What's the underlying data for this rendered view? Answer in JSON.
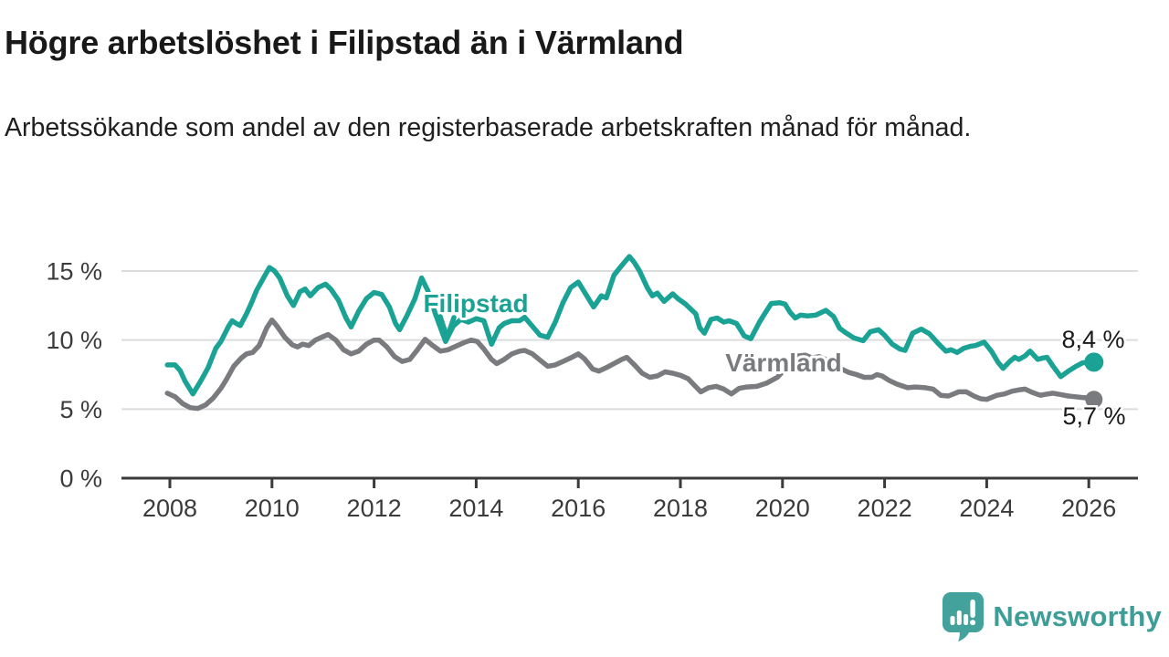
{
  "header": {
    "title": "Högre arbetslöshet i Filipstad än i Värmland",
    "subtitle": "Arbetssökande som andel av den registerbaserade arbetskraften månad för månad."
  },
  "footer": {
    "brand": "Newsworthy"
  },
  "colors": {
    "filipstad": "#1aa294",
    "varmland": "#7a7b7f",
    "grid": "#dcdcdc",
    "axis": "#3a3a3a",
    "value_label": "#1a1a1a",
    "tick_label": "#3b3b3b",
    "logo_teal": "#43a29b",
    "brand_text_teal": "#3d9d97"
  },
  "chart_data": {
    "type": "line",
    "unit": "percent",
    "grid": "horizontal",
    "legend_position": "inline-labels",
    "y_axis": {
      "tick_values": [
        0,
        5,
        10,
        15
      ],
      "tick_labels": [
        "0 %",
        "5 %",
        "10 %",
        "15 %"
      ],
      "range": [
        0,
        17
      ]
    },
    "x_axis": {
      "tick_values": [
        2008,
        2010,
        2012,
        2014,
        2016,
        2018,
        2020,
        2022,
        2024,
        2026
      ],
      "tick_labels": [
        "2008",
        "2010",
        "2012",
        "2014",
        "2016",
        "2018",
        "2020",
        "2022",
        "2024",
        "2026"
      ],
      "range": [
        2007.9,
        2027.0
      ]
    },
    "series": [
      {
        "name": "Filipstad",
        "color": "#1aa294",
        "end_value": 8.4,
        "end_value_label": "8,4 %",
        "points": [
          [
            2007.95,
            8.2
          ],
          [
            2008.1,
            8.2
          ],
          [
            2008.2,
            7.8
          ],
          [
            2008.3,
            7.0
          ],
          [
            2008.45,
            6.1
          ],
          [
            2008.6,
            7.0
          ],
          [
            2008.75,
            8.0
          ],
          [
            2008.9,
            9.4
          ],
          [
            2009.0,
            9.9
          ],
          [
            2009.15,
            11.0
          ],
          [
            2009.22,
            11.4
          ],
          [
            2009.3,
            11.2
          ],
          [
            2009.38,
            11.05
          ],
          [
            2009.5,
            11.9
          ],
          [
            2009.6,
            12.7
          ],
          [
            2009.7,
            13.6
          ],
          [
            2009.85,
            14.6
          ],
          [
            2009.95,
            15.25
          ],
          [
            2010.05,
            15.0
          ],
          [
            2010.15,
            14.5
          ],
          [
            2010.3,
            13.2
          ],
          [
            2010.42,
            12.5
          ],
          [
            2010.55,
            13.5
          ],
          [
            2010.65,
            13.7
          ],
          [
            2010.75,
            13.2
          ],
          [
            2010.9,
            13.8
          ],
          [
            2011.05,
            14.05
          ],
          [
            2011.15,
            13.7
          ],
          [
            2011.3,
            12.9
          ],
          [
            2011.45,
            11.6
          ],
          [
            2011.55,
            10.95
          ],
          [
            2011.7,
            12.1
          ],
          [
            2011.85,
            13.0
          ],
          [
            2012.0,
            13.45
          ],
          [
            2012.15,
            13.3
          ],
          [
            2012.3,
            12.4
          ],
          [
            2012.42,
            11.2
          ],
          [
            2012.5,
            10.75
          ],
          [
            2012.65,
            11.8
          ],
          [
            2012.8,
            13.0
          ],
          [
            2012.93,
            14.5
          ],
          [
            2013.05,
            13.6
          ],
          [
            2013.2,
            11.9
          ],
          [
            2013.4,
            9.9
          ],
          [
            2013.55,
            11.0
          ],
          [
            2013.7,
            11.5
          ],
          [
            2013.85,
            11.3
          ],
          [
            2014.0,
            11.55
          ],
          [
            2014.15,
            11.4
          ],
          [
            2014.3,
            9.7
          ],
          [
            2014.45,
            10.9
          ],
          [
            2014.55,
            11.2
          ],
          [
            2014.7,
            11.4
          ],
          [
            2014.85,
            11.4
          ],
          [
            2014.95,
            11.65
          ],
          [
            2015.1,
            11.0
          ],
          [
            2015.25,
            10.35
          ],
          [
            2015.4,
            10.2
          ],
          [
            2015.55,
            11.3
          ],
          [
            2015.7,
            12.7
          ],
          [
            2015.85,
            13.8
          ],
          [
            2016.0,
            14.2
          ],
          [
            2016.15,
            13.3
          ],
          [
            2016.3,
            12.4
          ],
          [
            2016.45,
            13.2
          ],
          [
            2016.55,
            13.05
          ],
          [
            2016.7,
            14.7
          ],
          [
            2016.85,
            15.4
          ],
          [
            2017.0,
            16.05
          ],
          [
            2017.1,
            15.6
          ],
          [
            2017.2,
            15.0
          ],
          [
            2017.35,
            13.8
          ],
          [
            2017.45,
            13.2
          ],
          [
            2017.55,
            13.4
          ],
          [
            2017.68,
            12.8
          ],
          [
            2017.85,
            13.35
          ],
          [
            2017.95,
            13.0
          ],
          [
            2018.1,
            12.6
          ],
          [
            2018.3,
            11.9
          ],
          [
            2018.38,
            10.9
          ],
          [
            2018.47,
            10.5
          ],
          [
            2018.6,
            11.5
          ],
          [
            2018.72,
            11.6
          ],
          [
            2018.85,
            11.3
          ],
          [
            2018.95,
            11.4
          ],
          [
            2019.1,
            11.2
          ],
          [
            2019.25,
            10.3
          ],
          [
            2019.38,
            10.1
          ],
          [
            2019.55,
            11.3
          ],
          [
            2019.65,
            11.9
          ],
          [
            2019.78,
            12.65
          ],
          [
            2019.95,
            12.7
          ],
          [
            2020.05,
            12.6
          ],
          [
            2020.15,
            12.0
          ],
          [
            2020.25,
            11.6
          ],
          [
            2020.35,
            11.8
          ],
          [
            2020.5,
            11.75
          ],
          [
            2020.65,
            11.8
          ],
          [
            2020.85,
            12.15
          ],
          [
            2021.0,
            11.7
          ],
          [
            2021.12,
            10.85
          ],
          [
            2021.25,
            10.5
          ],
          [
            2021.4,
            10.15
          ],
          [
            2021.58,
            9.95
          ],
          [
            2021.72,
            10.6
          ],
          [
            2021.88,
            10.75
          ],
          [
            2022.0,
            10.35
          ],
          [
            2022.15,
            9.7
          ],
          [
            2022.3,
            9.35
          ],
          [
            2022.4,
            9.25
          ],
          [
            2022.55,
            10.5
          ],
          [
            2022.72,
            10.8
          ],
          [
            2022.88,
            10.45
          ],
          [
            2023.05,
            9.75
          ],
          [
            2023.2,
            9.2
          ],
          [
            2023.3,
            9.3
          ],
          [
            2023.42,
            9.1
          ],
          [
            2023.55,
            9.4
          ],
          [
            2023.68,
            9.55
          ],
          [
            2023.78,
            9.6
          ],
          [
            2023.95,
            9.85
          ],
          [
            2024.1,
            9.15
          ],
          [
            2024.22,
            8.4
          ],
          [
            2024.32,
            7.95
          ],
          [
            2024.45,
            8.45
          ],
          [
            2024.55,
            8.75
          ],
          [
            2024.63,
            8.6
          ],
          [
            2024.75,
            8.85
          ],
          [
            2024.85,
            9.2
          ],
          [
            2025.0,
            8.6
          ],
          [
            2025.1,
            8.7
          ],
          [
            2025.18,
            8.75
          ],
          [
            2025.3,
            8.1
          ],
          [
            2025.45,
            7.35
          ],
          [
            2025.6,
            7.75
          ],
          [
            2025.75,
            8.1
          ],
          [
            2025.88,
            8.35
          ],
          [
            2026.0,
            8.4
          ],
          [
            2026.1,
            8.4
          ]
        ]
      },
      {
        "name": "Värmland",
        "color": "#7a7b7f",
        "end_value": 5.7,
        "end_value_label": "5,7 %",
        "points": [
          [
            2007.95,
            6.15
          ],
          [
            2008.1,
            5.9
          ],
          [
            2008.25,
            5.4
          ],
          [
            2008.4,
            5.1
          ],
          [
            2008.55,
            5.05
          ],
          [
            2008.7,
            5.3
          ],
          [
            2008.85,
            5.8
          ],
          [
            2009.0,
            6.5
          ],
          [
            2009.1,
            7.1
          ],
          [
            2009.25,
            8.1
          ],
          [
            2009.4,
            8.7
          ],
          [
            2009.5,
            9.0
          ],
          [
            2009.62,
            9.1
          ],
          [
            2009.75,
            9.6
          ],
          [
            2009.9,
            10.9
          ],
          [
            2010.0,
            11.45
          ],
          [
            2010.1,
            11.0
          ],
          [
            2010.25,
            10.2
          ],
          [
            2010.4,
            9.65
          ],
          [
            2010.5,
            9.5
          ],
          [
            2010.6,
            9.7
          ],
          [
            2010.72,
            9.6
          ],
          [
            2010.85,
            10.0
          ],
          [
            2011.0,
            10.25
          ],
          [
            2011.1,
            10.4
          ],
          [
            2011.25,
            10.0
          ],
          [
            2011.4,
            9.3
          ],
          [
            2011.55,
            9.0
          ],
          [
            2011.7,
            9.2
          ],
          [
            2011.85,
            9.7
          ],
          [
            2012.0,
            10.0
          ],
          [
            2012.1,
            10.0
          ],
          [
            2012.25,
            9.5
          ],
          [
            2012.4,
            8.8
          ],
          [
            2012.55,
            8.45
          ],
          [
            2012.7,
            8.6
          ],
          [
            2012.85,
            9.3
          ],
          [
            2013.0,
            10.05
          ],
          [
            2013.15,
            9.6
          ],
          [
            2013.3,
            9.2
          ],
          [
            2013.45,
            9.3
          ],
          [
            2013.6,
            9.55
          ],
          [
            2013.75,
            9.8
          ],
          [
            2013.9,
            10.0
          ],
          [
            2014.02,
            9.9
          ],
          [
            2014.15,
            9.35
          ],
          [
            2014.3,
            8.6
          ],
          [
            2014.4,
            8.3
          ],
          [
            2014.55,
            8.6
          ],
          [
            2014.7,
            9.0
          ],
          [
            2014.85,
            9.2
          ],
          [
            2014.95,
            9.25
          ],
          [
            2015.1,
            9.0
          ],
          [
            2015.25,
            8.55
          ],
          [
            2015.4,
            8.1
          ],
          [
            2015.55,
            8.2
          ],
          [
            2015.7,
            8.45
          ],
          [
            2015.85,
            8.7
          ],
          [
            2016.0,
            9.0
          ],
          [
            2016.12,
            8.65
          ],
          [
            2016.28,
            7.9
          ],
          [
            2016.4,
            7.75
          ],
          [
            2016.55,
            8.0
          ],
          [
            2016.7,
            8.3
          ],
          [
            2016.85,
            8.6
          ],
          [
            2016.95,
            8.75
          ],
          [
            2017.1,
            8.2
          ],
          [
            2017.25,
            7.6
          ],
          [
            2017.4,
            7.3
          ],
          [
            2017.55,
            7.4
          ],
          [
            2017.7,
            7.7
          ],
          [
            2017.85,
            7.6
          ],
          [
            2018.0,
            7.45
          ],
          [
            2018.15,
            7.2
          ],
          [
            2018.28,
            6.7
          ],
          [
            2018.4,
            6.25
          ],
          [
            2018.55,
            6.55
          ],
          [
            2018.7,
            6.65
          ],
          [
            2018.85,
            6.45
          ],
          [
            2019.0,
            6.1
          ],
          [
            2019.15,
            6.5
          ],
          [
            2019.3,
            6.6
          ],
          [
            2019.5,
            6.65
          ],
          [
            2019.7,
            6.9
          ],
          [
            2019.9,
            7.3
          ],
          [
            2020.1,
            8.1
          ],
          [
            2020.3,
            8.85
          ],
          [
            2020.45,
            8.9
          ],
          [
            2020.58,
            8.7
          ],
          [
            2020.72,
            8.8
          ],
          [
            2020.9,
            8.5
          ],
          [
            2021.1,
            8.0
          ],
          [
            2021.3,
            7.65
          ],
          [
            2021.45,
            7.5
          ],
          [
            2021.6,
            7.3
          ],
          [
            2021.75,
            7.3
          ],
          [
            2021.85,
            7.5
          ],
          [
            2021.95,
            7.4
          ],
          [
            2022.1,
            7.05
          ],
          [
            2022.25,
            6.8
          ],
          [
            2022.45,
            6.55
          ],
          [
            2022.6,
            6.6
          ],
          [
            2022.8,
            6.55
          ],
          [
            2022.95,
            6.45
          ],
          [
            2023.1,
            6.0
          ],
          [
            2023.25,
            5.95
          ],
          [
            2023.45,
            6.25
          ],
          [
            2023.6,
            6.25
          ],
          [
            2023.75,
            5.95
          ],
          [
            2023.88,
            5.75
          ],
          [
            2024.0,
            5.7
          ],
          [
            2024.2,
            6.0
          ],
          [
            2024.35,
            6.1
          ],
          [
            2024.5,
            6.3
          ],
          [
            2024.65,
            6.4
          ],
          [
            2024.75,
            6.45
          ],
          [
            2024.9,
            6.2
          ],
          [
            2025.05,
            6.0
          ],
          [
            2025.2,
            6.1
          ],
          [
            2025.3,
            6.15
          ],
          [
            2025.45,
            6.05
          ],
          [
            2025.6,
            5.95
          ],
          [
            2025.72,
            5.9
          ],
          [
            2025.85,
            5.85
          ],
          [
            2026.0,
            5.8
          ],
          [
            2026.1,
            5.7
          ]
        ]
      }
    ],
    "annotations": [
      {
        "text": "Filipstad",
        "series": "Filipstad"
      },
      {
        "text": "Värmland",
        "series": "Värmland"
      }
    ]
  }
}
